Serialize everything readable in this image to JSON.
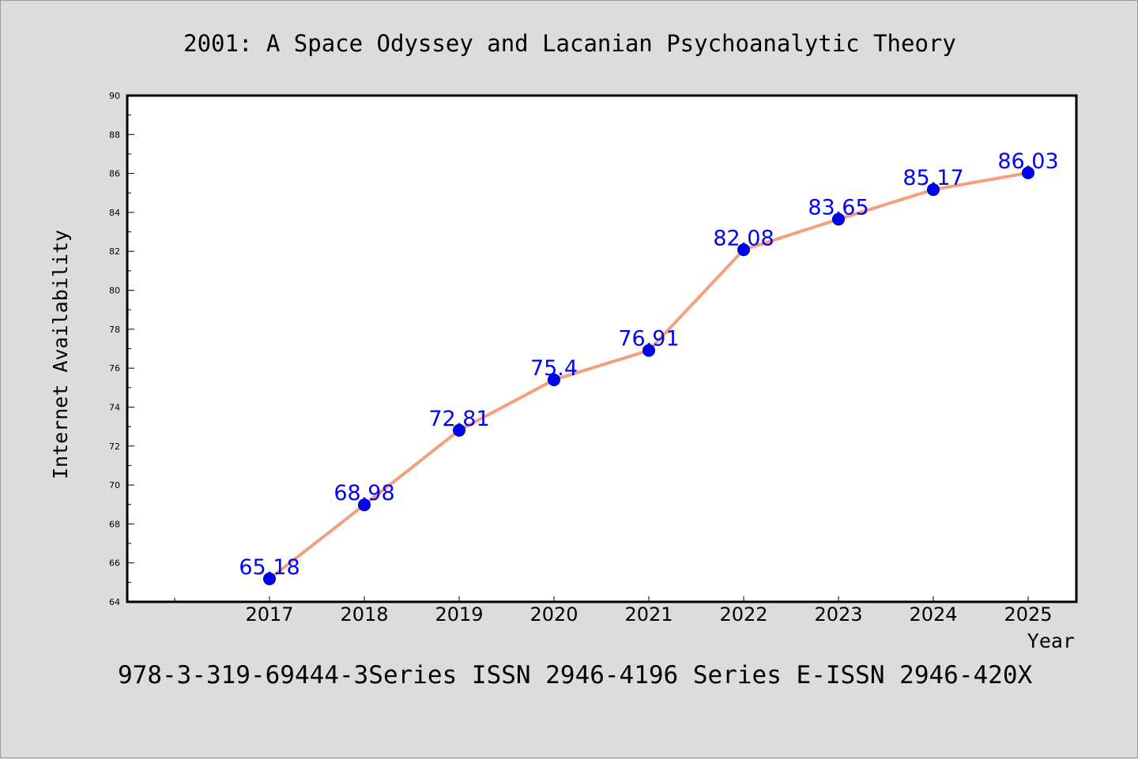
{
  "chart_data": {
    "type": "line",
    "title": "2001: A Space Odyssey and Lacanian Psychoanalytic Theory",
    "xlabel": "Year",
    "ylabel": "Internet Availability",
    "categories": [
      "2017",
      "2018",
      "2019",
      "2020",
      "2021",
      "2022",
      "2023",
      "2024",
      "2025"
    ],
    "series": [
      {
        "values": [
          65.18,
          68.98,
          72.81,
          75.4,
          76.91,
          82.08,
          83.65,
          85.17,
          86.03
        ],
        "data_labels": [
          "65.18",
          "68.98",
          "72.81",
          "75.4",
          "76.91",
          "82.08",
          "83.65",
          "85.17",
          "86.03"
        ]
      }
    ],
    "ylim": [
      64,
      90
    ],
    "yticks": [
      "64",
      "66",
      "68",
      "70",
      "72",
      "74",
      "76",
      "78",
      "80",
      "82",
      "84",
      "86",
      "88",
      "90"
    ],
    "grid": false,
    "footer": "978-3-319-69444-3Series ISSN 2946-4196 Series E-ISSN 2946-420X",
    "colors": {
      "background": "#dcdcdc",
      "plot_background": "#ffffff",
      "line": "#f4a07e",
      "marker": "#0000ff",
      "data_label": "#0000ff",
      "text": "#000000"
    }
  }
}
